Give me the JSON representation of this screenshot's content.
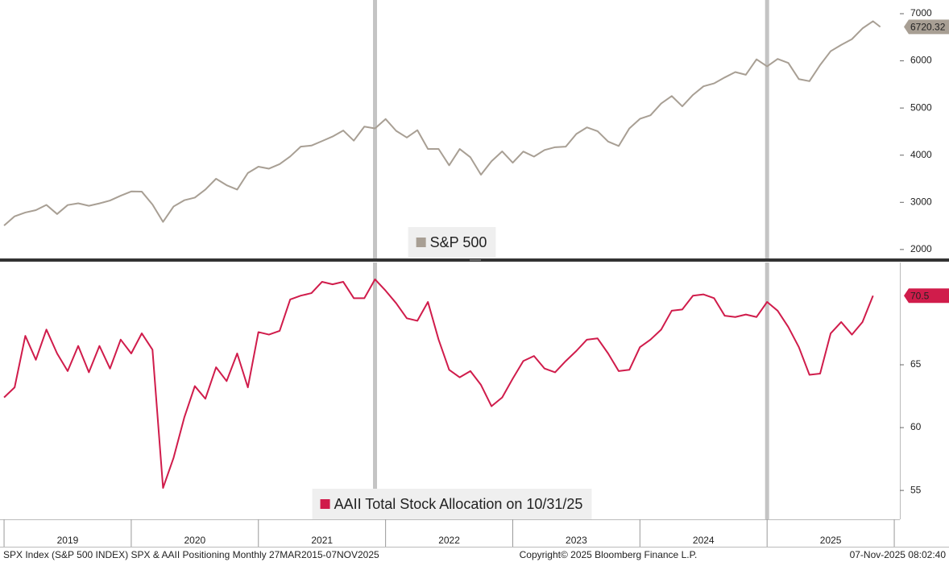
{
  "chart_data": [
    {
      "type": "line",
      "legend": "S&P 500",
      "series": [
        {
          "name": "S&P 500",
          "color": "#a89f94",
          "values": [
            2507,
            2704,
            2784,
            2834,
            2946,
            2752,
            2942,
            2980,
            2926,
            2977,
            3038,
            3141,
            3231,
            3226,
            2954,
            2585,
            2912,
            3044,
            3100,
            3271,
            3500,
            3363,
            3270,
            3622,
            3756,
            3714,
            3811,
            3973,
            4181,
            4204,
            4298,
            4395,
            4523,
            4308,
            4605,
            4567,
            4766,
            4516,
            4374,
            4530,
            4132,
            4132,
            3785,
            4130,
            3955,
            3586,
            3872,
            4080,
            3840,
            4077,
            3970,
            4109,
            4169,
            4180,
            4450,
            4589,
            4508,
            4288,
            4194,
            4568,
            4770,
            4846,
            5096,
            5254,
            5036,
            5278,
            5460,
            5522,
            5648,
            5762,
            5705,
            6032,
            5882,
            6041,
            5955,
            5612,
            5569,
            5912,
            6205,
            6339,
            6460,
            6688,
            6840,
            6720.32
          ]
        }
      ],
      "x": [
        2019,
        2019.083,
        2019.167,
        2019.25,
        2019.333,
        2019.417,
        2019.5,
        2019.583,
        2019.667,
        2019.75,
        2019.833,
        2019.917,
        2020,
        2020.083,
        2020.167,
        2020.25,
        2020.333,
        2020.417,
        2020.5,
        2020.583,
        2020.667,
        2020.75,
        2020.833,
        2020.917,
        2021,
        2021.083,
        2021.167,
        2021.25,
        2021.333,
        2021.417,
        2021.5,
        2021.583,
        2021.667,
        2021.75,
        2021.833,
        2021.917,
        2022,
        2022.083,
        2022.167,
        2022.25,
        2022.333,
        2022.417,
        2022.5,
        2022.583,
        2022.667,
        2022.75,
        2022.833,
        2022.917,
        2023,
        2023.083,
        2023.167,
        2023.25,
        2023.333,
        2023.417,
        2023.5,
        2023.583,
        2023.667,
        2023.75,
        2023.833,
        2023.917,
        2024,
        2024.083,
        2024.167,
        2024.25,
        2024.333,
        2024.417,
        2024.5,
        2024.583,
        2024.667,
        2024.75,
        2024.833,
        2024.917,
        2025,
        2025.083,
        2025.167,
        2025.25,
        2025.333,
        2025.417,
        2025.5,
        2025.583,
        2025.667,
        2025.75,
        2025.833,
        2025.89
      ],
      "xlim": [
        2018.968,
        2026.044
      ],
      "ylim": [
        1810,
        7290
      ],
      "yticks": [
        2000,
        3000,
        4000,
        5000,
        6000,
        7000
      ],
      "last_value_label": "6720.32",
      "tag_color": "#a89f94",
      "highlight_x": [
        2021.917,
        2025
      ],
      "grid": false
    },
    {
      "type": "line",
      "legend": "AAII Total Stock Allocation on 10/31/25",
      "series": [
        {
          "name": "AAII Total Stock Allocation on 10/31/25",
          "color": "#d01c4b",
          "values": [
            62.4,
            63.2,
            67.3,
            65.4,
            67.8,
            65.9,
            64.5,
            66.5,
            64.4,
            66.5,
            64.7,
            67.0,
            65.9,
            67.5,
            66.2,
            55.2,
            57.6,
            60.8,
            63.3,
            62.3,
            64.8,
            63.7,
            65.9,
            63.2,
            67.6,
            67.4,
            67.7,
            70.2,
            70.5,
            70.7,
            71.6,
            71.4,
            71.6,
            70.3,
            70.3,
            71.8,
            70.9,
            69.9,
            68.7,
            68.5,
            70.0,
            67.0,
            64.6,
            64.0,
            64.5,
            63.4,
            61.7,
            62.4,
            63.9,
            65.3,
            65.7,
            64.7,
            64.4,
            65.3,
            66.1,
            67.0,
            67.1,
            65.9,
            64.5,
            64.6,
            66.4,
            67.0,
            67.8,
            69.3,
            69.4,
            70.5,
            70.6,
            70.3,
            68.9,
            68.8,
            69.0,
            68.8,
            70.0,
            69.3,
            68.0,
            66.4,
            64.2,
            64.3,
            67.5,
            68.4,
            67.4,
            68.4,
            70.5,
            null
          ]
        }
      ],
      "x": [
        2019,
        2019.083,
        2019.167,
        2019.25,
        2019.333,
        2019.417,
        2019.5,
        2019.583,
        2019.667,
        2019.75,
        2019.833,
        2019.917,
        2020,
        2020.083,
        2020.167,
        2020.25,
        2020.333,
        2020.417,
        2020.5,
        2020.583,
        2020.667,
        2020.75,
        2020.833,
        2020.917,
        2021,
        2021.083,
        2021.167,
        2021.25,
        2021.333,
        2021.417,
        2021.5,
        2021.583,
        2021.667,
        2021.75,
        2021.833,
        2021.917,
        2022,
        2022.083,
        2022.167,
        2022.25,
        2022.333,
        2022.417,
        2022.5,
        2022.583,
        2022.667,
        2022.75,
        2022.833,
        2022.917,
        2023,
        2023.083,
        2023.167,
        2023.25,
        2023.333,
        2023.417,
        2023.5,
        2023.583,
        2023.667,
        2023.75,
        2023.833,
        2023.917,
        2024,
        2024.083,
        2024.167,
        2024.25,
        2024.333,
        2024.417,
        2024.5,
        2024.583,
        2024.667,
        2024.75,
        2024.833,
        2024.917,
        2025,
        2025.083,
        2025.167,
        2025.25,
        2025.333,
        2025.417,
        2025.5,
        2025.583,
        2025.667,
        2025.75,
        2025.833,
        2025.89
      ],
      "xlim": [
        2018.968,
        2026.044
      ],
      "ylim": [
        52.7,
        73.14
      ],
      "yticks": [
        55,
        60,
        65
      ],
      "last_value_label": "70.5",
      "tag_color": "#d01c4b",
      "highlight_x": [
        2021.917,
        2025
      ],
      "grid": false,
      "xticks": [
        {
          "value": 2019.5,
          "label": "2019"
        },
        {
          "value": 2020.5,
          "label": "2020"
        },
        {
          "value": 2021.5,
          "label": "2021"
        },
        {
          "value": 2022.5,
          "label": "2022"
        },
        {
          "value": 2023.5,
          "label": "2023"
        },
        {
          "value": 2024.5,
          "label": "2024"
        },
        {
          "value": 2025.5,
          "label": "2025"
        }
      ],
      "x_separators": [
        2019,
        2020,
        2021,
        2022,
        2023,
        2024,
        2025,
        2026
      ]
    }
  ],
  "footer": {
    "left": "SPX Index (S&P 500 INDEX) SPX & AAII Positioning Monthly 27MAR2015-07NOV2025",
    "center": "Copyright© 2025 Bloomberg Finance L.P.",
    "right": "07-Nov-2025 08:02:40"
  }
}
